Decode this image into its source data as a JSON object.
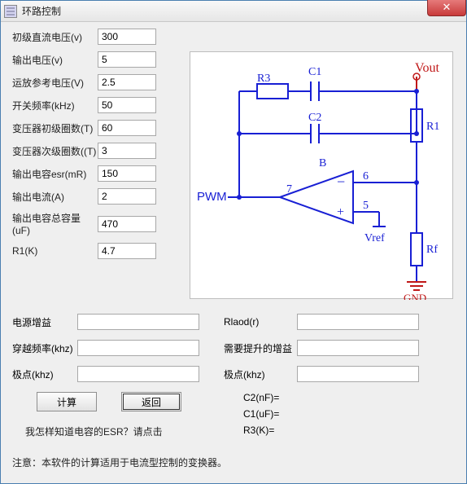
{
  "window": {
    "title": "环路控制"
  },
  "left_fields": [
    {
      "label": "初级直流电压(v)",
      "value": "300"
    },
    {
      "label": "输出电压(v)",
      "value": "5"
    },
    {
      "label": "运放参考电压(V)",
      "value": "2.5"
    },
    {
      "label": "开关频率(kHz)",
      "value": "50"
    },
    {
      "label": "变压器初级圈数(T)",
      "value": "60"
    },
    {
      "label": "变压器次级圈数((T)",
      "value": "3"
    },
    {
      "label": "输出电容esr(mR)",
      "value": "150"
    },
    {
      "label": "输出电流(A)",
      "value": "2"
    },
    {
      "label": "输出电容总容量(uF)",
      "value": "470"
    },
    {
      "label": "R1(K)",
      "value": "4.7"
    }
  ],
  "bottom_left": [
    {
      "label": "电源增益",
      "value": ""
    },
    {
      "label": "穿越频率(khz)",
      "value": ""
    },
    {
      "label": "极点(khz)",
      "value": ""
    }
  ],
  "bottom_right": [
    {
      "label": "Rlaod(r)",
      "value": ""
    },
    {
      "label": "需要提升的增益",
      "value": ""
    },
    {
      "label": "极点(khz)",
      "value": ""
    }
  ],
  "buttons": {
    "calc": "计算",
    "back": "返回"
  },
  "outputs": [
    {
      "label": "C2(nF)="
    },
    {
      "label": "C1(uF)="
    },
    {
      "label": "R3(K)="
    }
  ],
  "link_text": "我怎样知道电容的ESR？请点击",
  "note_text": "注意：本软件的计算适用于电流型控制的变换器。",
  "schematic": {
    "labels": {
      "R3": "R3",
      "C1": "C1",
      "C2": "C2",
      "B": "B",
      "PWM": "PWM",
      "Vout": "Vout",
      "R1": "R1",
      "Rf": "Rf",
      "Vref": "Vref",
      "GND": "GND",
      "pin5": "5",
      "pin6": "6",
      "pin7": "7",
      "plus": "+",
      "minus": "−"
    },
    "colors": {
      "wire": "#181fd4",
      "text": "#181fd4",
      "vout": "#c01818"
    }
  }
}
